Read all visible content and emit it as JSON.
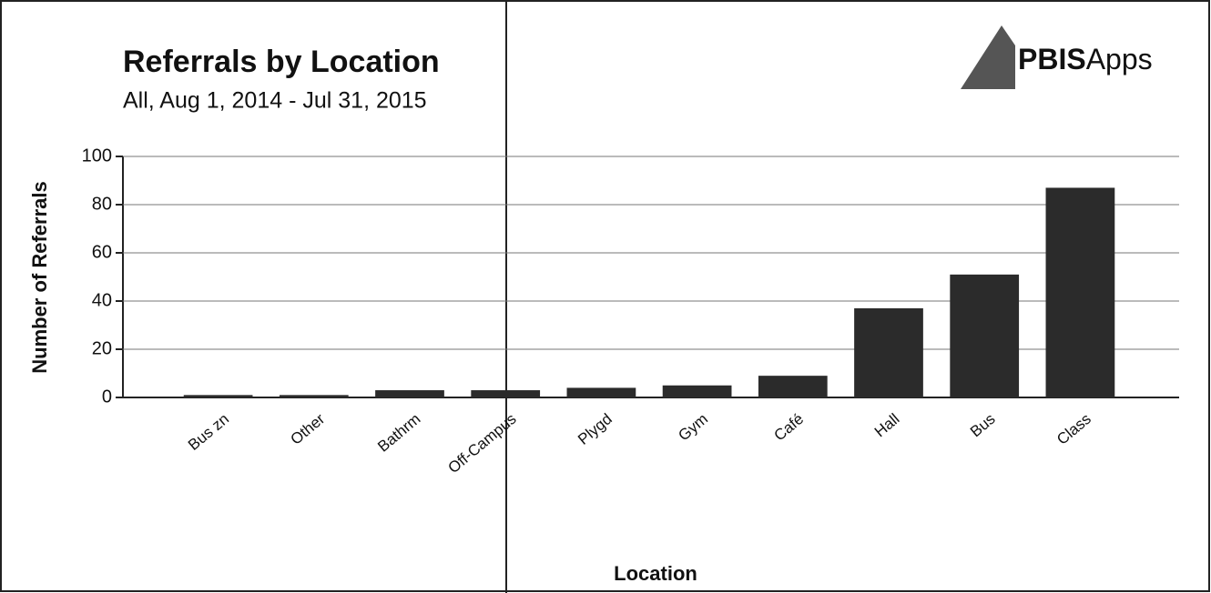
{
  "chart_data": {
    "type": "bar",
    "title": "Referrals by Location",
    "subtitle": "All, Aug 1, 2014 - Jul 31, 2015",
    "logo": {
      "bold": "PBIS",
      "rest": "Apps"
    },
    "y_label": "Number of Referrals",
    "x_label": "Location",
    "categories": [
      "Bus zn",
      "Other",
      "Bathrm",
      "Off-Campus",
      "Plygd",
      "Gym",
      "Café",
      "Hall",
      "Bus",
      "Class"
    ],
    "values": [
      1,
      1,
      3,
      3,
      4,
      5,
      9,
      37,
      51,
      87
    ],
    "color": "#2b2b2b",
    "ylim": [
      0,
      100
    ],
    "yticks": [
      0,
      20,
      40,
      60,
      80,
      100
    ],
    "grid": true
  }
}
